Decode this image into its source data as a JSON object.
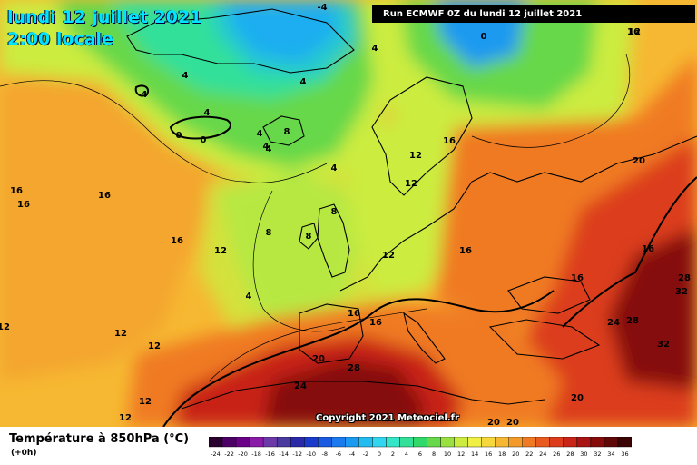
{
  "header": {
    "date": "lundi 12 juillet 2021",
    "local_time": "2:00 locale",
    "run_info": "Run ECMWF 0Z du lundi 12 juillet 2021"
  },
  "copyright": "Copyright 2021 Meteociel.fr",
  "legend": {
    "title": "Température à 850hPa (°C)",
    "lead": "(+0h)",
    "scale_values": [
      "-24",
      "-22",
      "-20",
      "-18",
      "-16",
      "-14",
      "-12",
      "-10",
      "-8",
      "-6",
      "-4",
      "-2",
      "0",
      "2",
      "4",
      "6",
      "8",
      "10",
      "12",
      "14",
      "16",
      "18",
      "20",
      "22",
      "24",
      "26",
      "28",
      "30",
      "32",
      "34",
      "36"
    ],
    "scale_colors": [
      "#2a0030",
      "#4c0066",
      "#6a0088",
      "#8a1aa8",
      "#6b3aa8",
      "#4a3aa0",
      "#2a2aa8",
      "#1a3acc",
      "#1a5ae0",
      "#1a7aee",
      "#1a9af0",
      "#22bcf0",
      "#33d6f0",
      "#33e6c8",
      "#33e09a",
      "#33d86a",
      "#66d84a",
      "#9ae040",
      "#ccec40",
      "#f0f044",
      "#f6d83c",
      "#f6b832",
      "#f49a2a",
      "#f07a24",
      "#e85a20",
      "#dc3c1c",
      "#c82418",
      "#a81414",
      "#860c0c",
      "#600808",
      "#3a0404"
    ]
  },
  "map_labels": [
    {
      "text": "-4"
    },
    {
      "text": "0"
    },
    {
      "text": "0"
    },
    {
      "text": "4"
    },
    {
      "text": "4"
    },
    {
      "text": "4"
    },
    {
      "text": "4"
    },
    {
      "text": "4"
    },
    {
      "text": "4"
    },
    {
      "text": "4"
    },
    {
      "text": "0"
    },
    {
      "text": "0"
    },
    {
      "text": "8"
    },
    {
      "text": "4"
    },
    {
      "text": "4"
    },
    {
      "text": "8"
    },
    {
      "text": "8"
    },
    {
      "text": "8"
    },
    {
      "text": "4"
    },
    {
      "text": "12"
    },
    {
      "text": "16"
    },
    {
      "text": "16"
    },
    {
      "text": "16"
    },
    {
      "text": "16"
    },
    {
      "text": "12"
    },
    {
      "text": "16"
    },
    {
      "text": "12"
    },
    {
      "text": "16"
    },
    {
      "text": "12"
    },
    {
      "text": "12"
    },
    {
      "text": "16"
    },
    {
      "text": "16"
    },
    {
      "text": "16"
    },
    {
      "text": "16"
    },
    {
      "text": "20"
    },
    {
      "text": "16"
    },
    {
      "text": "28"
    },
    {
      "text": "32"
    },
    {
      "text": "24"
    },
    {
      "text": "28"
    },
    {
      "text": "32"
    },
    {
      "text": "20"
    },
    {
      "text": "28"
    },
    {
      "text": "24"
    },
    {
      "text": "20"
    },
    {
      "text": "20"
    },
    {
      "text": "20"
    },
    {
      "text": "12"
    },
    {
      "text": "12"
    },
    {
      "text": "12"
    },
    {
      "text": "12"
    },
    {
      "text": "12"
    }
  ]
}
